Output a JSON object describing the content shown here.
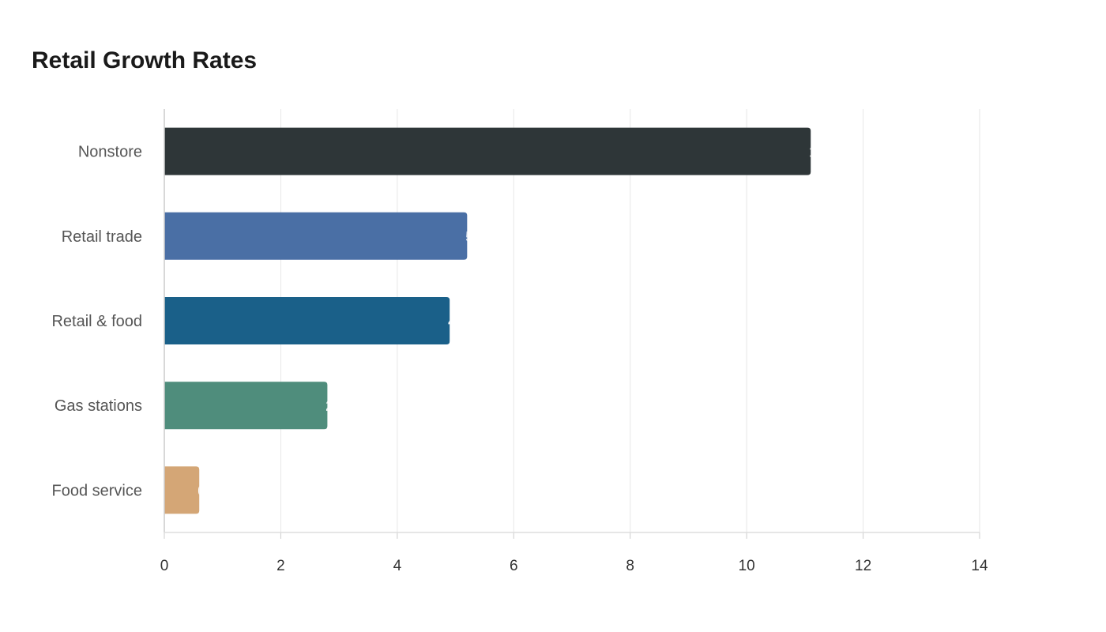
{
  "chart_data": {
    "type": "bar",
    "orientation": "horizontal",
    "title": "Retail Growth Rates",
    "xlabel": "",
    "ylabel": "",
    "categories": [
      "Nonstore",
      "Retail trade",
      "Retail & food",
      "Gas stations",
      "Food service"
    ],
    "values": [
      11.1,
      5.2,
      4.9,
      2.8,
      0.6
    ],
    "colors": [
      "#2e3638",
      "#4a6fa5",
      "#1a6089",
      "#4f8d7c",
      "#d4a676"
    ],
    "xlim": [
      0,
      14
    ],
    "x_ticks": [
      "0",
      "2",
      "4",
      "6",
      "8",
      "10",
      "12",
      "14"
    ],
    "grid": true,
    "legend": "none"
  }
}
